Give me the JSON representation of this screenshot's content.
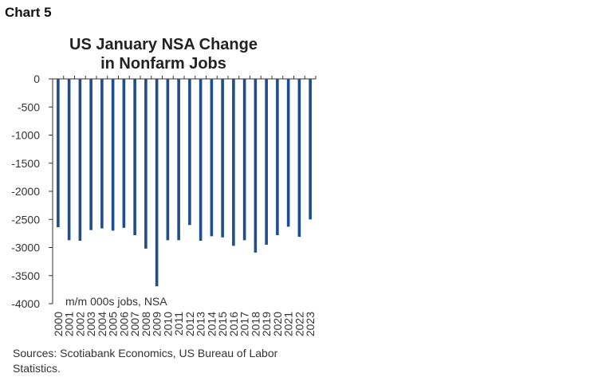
{
  "header": {
    "chart_number": "Chart 5"
  },
  "chart_data": {
    "type": "bar",
    "title_lines": [
      "US January NSA Change",
      "in Nonfarm Jobs"
    ],
    "note": "m/m 000s jobs, NSA",
    "categories": [
      "2000",
      "2001",
      "2002",
      "2003",
      "2004",
      "2005",
      "2006",
      "2007",
      "2008",
      "2009",
      "2010",
      "2011",
      "2012",
      "2013",
      "2014",
      "2015",
      "2016",
      "2017",
      "2018",
      "2019",
      "2020",
      "2021",
      "2022",
      "2023"
    ],
    "values": [
      -2640,
      -2870,
      -2880,
      -2690,
      -2660,
      -2700,
      -2650,
      -2780,
      -3020,
      -3690,
      -2870,
      -2870,
      -2600,
      -2880,
      -2800,
      -2820,
      -2970,
      -2870,
      -3090,
      -2950,
      -2780,
      -2630,
      -2810,
      -2500
    ],
    "ylim": [
      -4000,
      0
    ],
    "yticks": [
      0,
      -500,
      -1000,
      -1500,
      -2000,
      -2500,
      -3000,
      -3500,
      -4000
    ],
    "bar_color": "#1f4e8c",
    "axis_color": "#333333",
    "grid": false
  },
  "footer": {
    "source": "Sources: Scotiabank Economics, US Bureau of Labor Statistics."
  }
}
